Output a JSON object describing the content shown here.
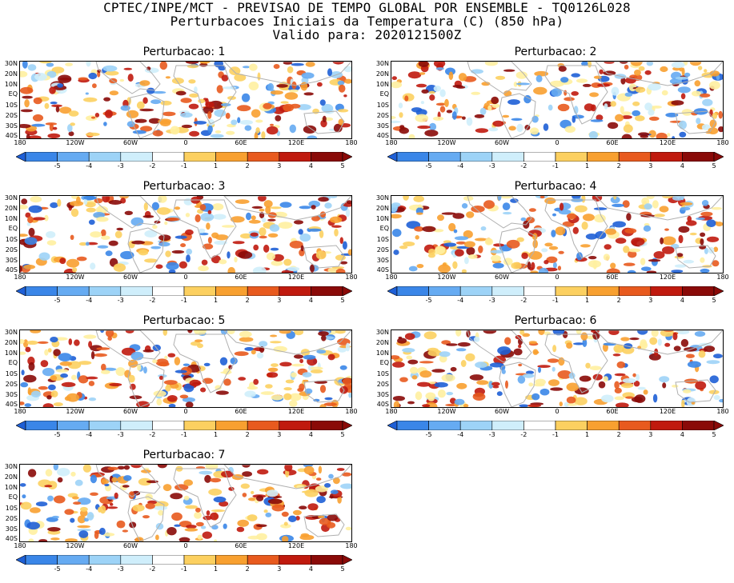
{
  "header": {
    "line1": "CPTEC/INPE/MCT - PREVISAO DE TEMPO GLOBAL POR ENSEMBLE - TQ0126L028",
    "line2": "Perturbacoes Iniciais da Temperatura (C) (850 hPa)",
    "line3": "Valido para: 2020121500Z"
  },
  "panels": [
    {
      "title": "Perturbacao: 1",
      "seed": 11
    },
    {
      "title": "Perturbacao: 2",
      "seed": 23
    },
    {
      "title": "Perturbacao: 3",
      "seed": 37
    },
    {
      "title": "Perturbacao: 4",
      "seed": 41
    },
    {
      "title": "Perturbacao: 5",
      "seed": 53
    },
    {
      "title": "Perturbacao: 6",
      "seed": 67
    },
    {
      "title": "Perturbacao: 7",
      "seed": 79
    }
  ],
  "lat_labels": [
    "30N",
    "20N",
    "10N",
    "EQ",
    "10S",
    "20S",
    "30S",
    "40S"
  ],
  "lon_labels": [
    "180",
    "120W",
    "60W",
    "0",
    "60E",
    "120E",
    "180"
  ],
  "colorbar": {
    "labels": [
      "-5",
      "-4",
      "-3",
      "-2",
      "-1",
      "1",
      "2",
      "3",
      "4",
      "5"
    ],
    "colors": [
      "#1e5fd6",
      "#3a86e8",
      "#66abf2",
      "#9dd3f7",
      "#cfeefb",
      "#ffffff",
      "#fff0a0",
      "#fcd060",
      "#f8a030",
      "#e85a1e",
      "#c01a0e",
      "#8a0a08"
    ]
  },
  "map_colors": {
    "border": "#b0b0b0"
  }
}
